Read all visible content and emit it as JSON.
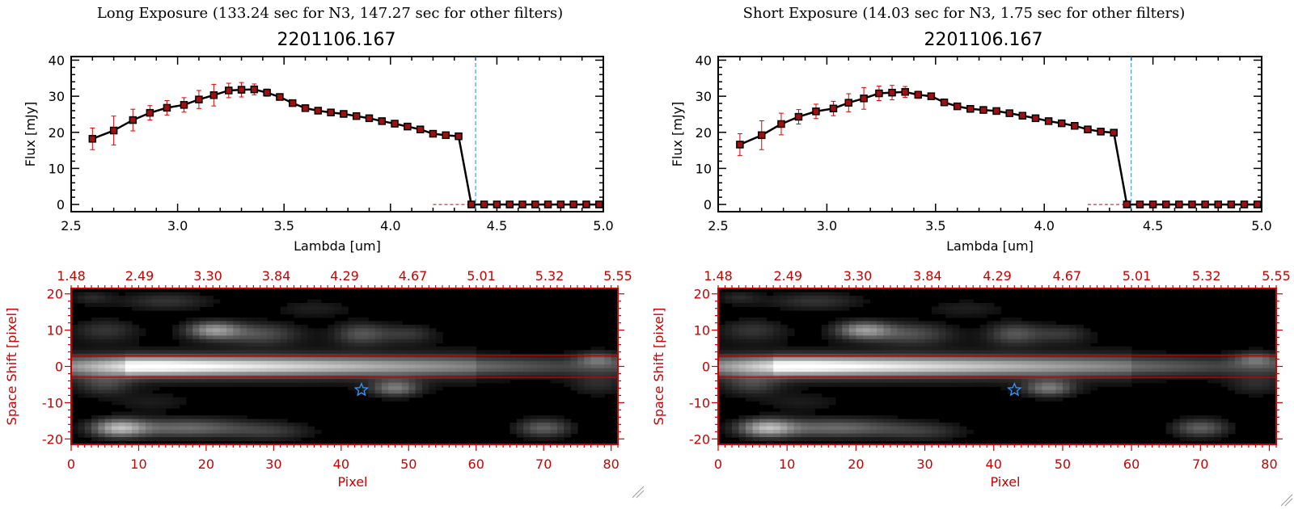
{
  "panels": [
    {
      "title": "Long Exposure (133.24 sec for N3, 147.27 sec for other filters)",
      "subtitle": "2201106.167"
    },
    {
      "title": "Short Exposure (14.03 sec for N3, 1.75 sec for other filters)",
      "subtitle": "2201106.167"
    }
  ],
  "colors": {
    "axis_red": "#cc0000",
    "error_bar": "#e00000",
    "marker_fill": "#a01010",
    "vline": "#3388dd",
    "star": "#3399ff"
  },
  "chart_data": [
    {
      "type": "line",
      "title": "2201106.167",
      "xlabel": "Lambda [um]",
      "ylabel": "Flux [mJy]",
      "xlim": [
        2.5,
        5.0
      ],
      "ylim": [
        -2,
        41
      ],
      "xticks": [
        "2.5",
        "3.0",
        "3.5",
        "4.0",
        "4.5",
        "5.0"
      ],
      "yticks": [
        "0",
        "10",
        "20",
        "30",
        "40"
      ],
      "vline": 4.4,
      "x": [
        2.6,
        2.7,
        2.79,
        2.87,
        2.95,
        3.03,
        3.1,
        3.17,
        3.24,
        3.3,
        3.36,
        3.42,
        3.48,
        3.54,
        3.6,
        3.66,
        3.72,
        3.78,
        3.84,
        3.9,
        3.96,
        4.02,
        4.08,
        4.14,
        4.2,
        4.26,
        4.32,
        4.38,
        4.44,
        4.5,
        4.56,
        4.62,
        4.68,
        4.74,
        4.8,
        4.86,
        4.92,
        4.98
      ],
      "y": [
        18.2,
        20.5,
        23.4,
        25.4,
        26.8,
        27.6,
        29.1,
        30.3,
        31.6,
        31.8,
        31.9,
        31.0,
        29.8,
        28.1,
        26.7,
        26.0,
        25.5,
        25.1,
        24.5,
        23.9,
        23.1,
        22.4,
        21.6,
        20.8,
        19.6,
        19.2,
        18.9,
        0,
        0,
        0,
        0,
        0,
        0,
        0,
        0,
        0,
        0,
        0
      ],
      "yerr": [
        3.0,
        4.0,
        3.0,
        2.0,
        2.0,
        2.0,
        2.5,
        3.0,
        2.0,
        2.0,
        1.5,
        1.0,
        0.8,
        0.6,
        0.5,
        0.5,
        0.5,
        0.5,
        0.5,
        0.5,
        0.5,
        0.5,
        0.5,
        0.5,
        0.5,
        0.5,
        0.5,
        0,
        0,
        0,
        0,
        0,
        0,
        0,
        0,
        0,
        0,
        0
      ]
    },
    {
      "type": "heatmap",
      "xlabel": "Pixel",
      "ylabel": "Space Shift [pixel]",
      "xlim": [
        0,
        81
      ],
      "ylim": [
        -21.5,
        21.5
      ],
      "xticks": [
        "0",
        "10",
        "20",
        "30",
        "40",
        "50",
        "60",
        "70",
        "80"
      ],
      "yticks": [
        "-20",
        "-10",
        "0",
        "10",
        "20"
      ],
      "top_ticks": [
        "1.48",
        "2.49",
        "3.30",
        "3.84",
        "4.29",
        "4.67",
        "5.01",
        "5.32",
        "5.55"
      ],
      "aperture": [
        -3,
        3
      ],
      "star": [
        43,
        -6.5
      ]
    },
    {
      "type": "line",
      "title": "2201106.167",
      "xlabel": "Lambda [um]",
      "ylabel": "Flux [mJy]",
      "xlim": [
        2.5,
        5.0
      ],
      "ylim": [
        -2,
        41
      ],
      "xticks": [
        "2.5",
        "3.0",
        "3.5",
        "4.0",
        "4.5",
        "5.0"
      ],
      "yticks": [
        "0",
        "10",
        "20",
        "30",
        "40"
      ],
      "vline": 4.4,
      "x": [
        2.6,
        2.7,
        2.79,
        2.87,
        2.95,
        3.03,
        3.1,
        3.17,
        3.24,
        3.3,
        3.36,
        3.42,
        3.48,
        3.54,
        3.6,
        3.66,
        3.72,
        3.78,
        3.84,
        3.9,
        3.96,
        4.02,
        4.08,
        4.14,
        4.2,
        4.26,
        4.32,
        4.38,
        4.44,
        4.5,
        4.56,
        4.62,
        4.68,
        4.74,
        4.8,
        4.86,
        4.92,
        4.98
      ],
      "y": [
        16.6,
        19.2,
        22.3,
        24.3,
        25.8,
        26.6,
        28.2,
        29.4,
        30.8,
        31.0,
        31.2,
        30.4,
        30.0,
        28.3,
        27.2,
        26.5,
        26.2,
        25.9,
        25.3,
        24.6,
        23.9,
        23.1,
        22.5,
        21.8,
        20.8,
        20.2,
        19.9,
        0,
        0,
        0,
        0,
        0,
        0,
        0,
        0,
        0,
        0,
        0
      ],
      "yerr": [
        3.0,
        4.0,
        3.0,
        2.0,
        2.0,
        2.0,
        2.5,
        3.0,
        2.0,
        2.0,
        1.5,
        1.0,
        0.8,
        0.6,
        0.5,
        0.5,
        0.5,
        0.5,
        0.5,
        0.5,
        0.5,
        0.5,
        0.5,
        0.5,
        0.5,
        0.5,
        0.5,
        0,
        0,
        0,
        0,
        0,
        0,
        0,
        0,
        0,
        0,
        0
      ]
    },
    {
      "type": "heatmap",
      "xlabel": "Pixel",
      "ylabel": "Space Shift [pixel]",
      "xlim": [
        0,
        81
      ],
      "ylim": [
        -21.5,
        21.5
      ],
      "xticks": [
        "0",
        "10",
        "20",
        "30",
        "40",
        "50",
        "60",
        "70",
        "80"
      ],
      "yticks": [
        "-20",
        "-10",
        "0",
        "10",
        "20"
      ],
      "top_ticks": [
        "1.48",
        "2.49",
        "3.30",
        "3.84",
        "4.29",
        "4.67",
        "5.01",
        "5.32",
        "5.55"
      ],
      "aperture": [
        -3,
        3
      ],
      "star": [
        43,
        -6.5
      ]
    }
  ]
}
